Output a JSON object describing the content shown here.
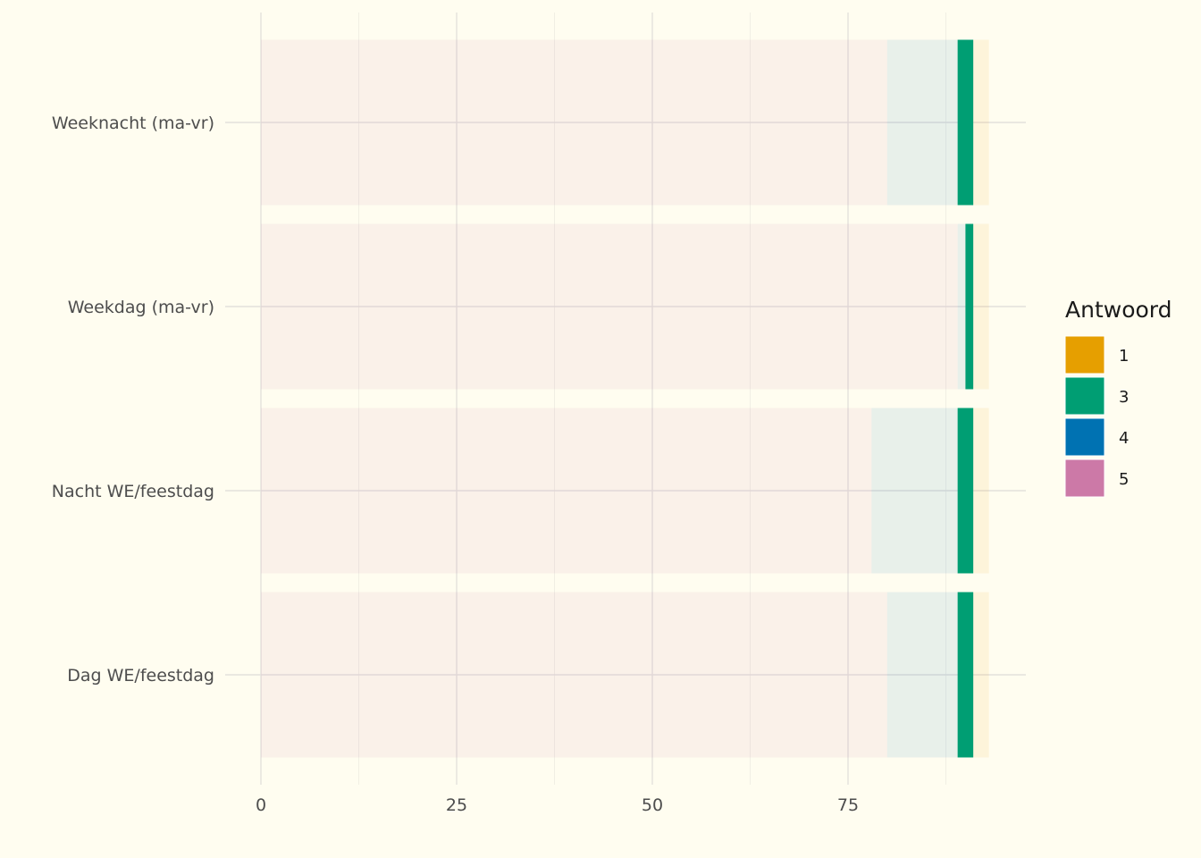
{
  "chart_data": {
    "type": "bar",
    "orientation": "horizontal",
    "stacked": true,
    "categories": [
      "Weeknacht (ma-vr)",
      "Weekdag (ma-vr)",
      "Nacht WE/feestdag",
      "Dag WE/feestdag"
    ],
    "series": [
      {
        "name": "5",
        "color": "#cc79a7",
        "values": [
          80,
          89,
          78,
          80
        ]
      },
      {
        "name": "4",
        "color": "#0072b2",
        "values": [
          9,
          1,
          11,
          9
        ]
      },
      {
        "name": "3",
        "color": "#009e73",
        "values": [
          2,
          1,
          2,
          2
        ]
      },
      {
        "name": "1",
        "color": "#e69f00",
        "values": [
          2,
          2,
          2,
          2
        ]
      }
    ],
    "xlim": [
      0,
      97.7
    ],
    "x_ticks": [
      "0",
      "25",
      "50",
      "75"
    ],
    "grid": true,
    "highlighted_series": "3",
    "legend": {
      "title": "Antwoord",
      "position": "right",
      "entries": [
        {
          "label": "1",
          "color": "#e69f00"
        },
        {
          "label": "3",
          "color": "#009e73"
        },
        {
          "label": "4",
          "color": "#0072b2"
        },
        {
          "label": "5",
          "color": "#cc79a7"
        }
      ]
    }
  }
}
